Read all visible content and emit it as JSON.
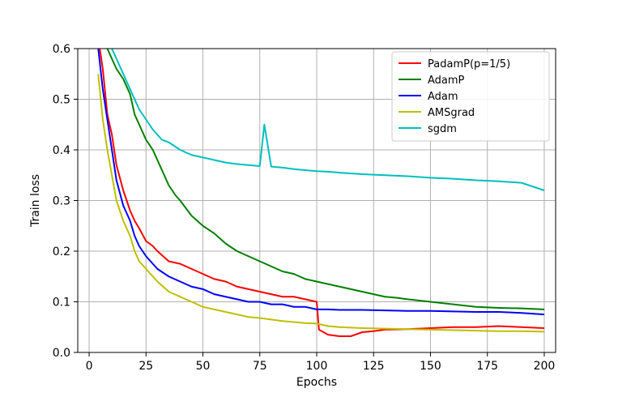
{
  "chart_data": {
    "type": "line",
    "title": "",
    "xlabel": "Epochs",
    "ylabel": "Train loss",
    "xlim": [
      -5,
      205
    ],
    "ylim": [
      0.0,
      0.6
    ],
    "xticks": [
      0,
      25,
      50,
      75,
      100,
      125,
      150,
      175,
      200
    ],
    "yticks": [
      0.0,
      0.1,
      0.2,
      0.3,
      0.4,
      0.5,
      0.6
    ],
    "xtick_labels": [
      "0",
      "25",
      "50",
      "75",
      "100",
      "125",
      "150",
      "175",
      "200"
    ],
    "ytick_labels": [
      "0.0",
      "0.1",
      "0.2",
      "0.3",
      "0.4",
      "0.5",
      "0.6"
    ],
    "grid": true,
    "legend_position": "top-right",
    "series": [
      {
        "name": "PadamP(p=1/5)",
        "color": "#ff0000",
        "x": [
          4,
          6,
          8,
          10,
          12,
          15,
          18,
          20,
          22,
          25,
          28,
          30,
          35,
          40,
          45,
          50,
          55,
          60,
          65,
          70,
          75,
          80,
          85,
          90,
          95,
          100,
          101,
          105,
          110,
          115,
          120,
          125,
          130,
          140,
          150,
          160,
          170,
          180,
          190,
          200
        ],
        "y": [
          0.62,
          0.56,
          0.47,
          0.43,
          0.37,
          0.32,
          0.28,
          0.26,
          0.245,
          0.22,
          0.21,
          0.2,
          0.18,
          0.175,
          0.165,
          0.155,
          0.145,
          0.14,
          0.13,
          0.125,
          0.12,
          0.115,
          0.11,
          0.11,
          0.105,
          0.1,
          0.045,
          0.035,
          0.032,
          0.032,
          0.04,
          0.042,
          0.045,
          0.046,
          0.048,
          0.05,
          0.05,
          0.052,
          0.05,
          0.048
        ]
      },
      {
        "name": "AdamP",
        "color": "#008000",
        "x": [
          6,
          8,
          10,
          12,
          15,
          18,
          20,
          22,
          25,
          28,
          30,
          32,
          35,
          38,
          40,
          45,
          50,
          55,
          60,
          65,
          70,
          75,
          80,
          85,
          90,
          95,
          100,
          105,
          110,
          115,
          120,
          125,
          130,
          135,
          140,
          150,
          160,
          170,
          180,
          190,
          200
        ],
        "y": [
          0.64,
          0.6,
          0.58,
          0.56,
          0.54,
          0.51,
          0.47,
          0.45,
          0.42,
          0.4,
          0.38,
          0.36,
          0.33,
          0.31,
          0.3,
          0.27,
          0.25,
          0.235,
          0.215,
          0.2,
          0.19,
          0.18,
          0.17,
          0.16,
          0.155,
          0.145,
          0.14,
          0.135,
          0.13,
          0.125,
          0.12,
          0.115,
          0.11,
          0.108,
          0.105,
          0.1,
          0.095,
          0.09,
          0.088,
          0.087,
          0.085
        ]
      },
      {
        "name": "Adam",
        "color": "#0000ff",
        "x": [
          4,
          6,
          8,
          10,
          12,
          15,
          18,
          20,
          22,
          25,
          28,
          30,
          35,
          40,
          45,
          50,
          55,
          60,
          65,
          70,
          75,
          80,
          85,
          90,
          95,
          100,
          105,
          110,
          120,
          130,
          140,
          150,
          160,
          170,
          180,
          190,
          200
        ],
        "y": [
          0.6,
          0.52,
          0.46,
          0.4,
          0.34,
          0.29,
          0.26,
          0.23,
          0.21,
          0.19,
          0.175,
          0.165,
          0.15,
          0.14,
          0.13,
          0.125,
          0.115,
          0.11,
          0.105,
          0.1,
          0.1,
          0.095,
          0.095,
          0.09,
          0.09,
          0.085,
          0.085,
          0.084,
          0.084,
          0.083,
          0.082,
          0.082,
          0.081,
          0.08,
          0.08,
          0.078,
          0.075
        ]
      },
      {
        "name": "AMSgrad",
        "color": "#bfbf00",
        "x": [
          4,
          6,
          8,
          10,
          12,
          15,
          18,
          20,
          22,
          25,
          28,
          30,
          35,
          40,
          45,
          50,
          55,
          60,
          65,
          70,
          75,
          80,
          85,
          90,
          95,
          100,
          105,
          110,
          120,
          130,
          140,
          150,
          160,
          170,
          180,
          190,
          200
        ],
        "y": [
          0.55,
          0.46,
          0.4,
          0.35,
          0.3,
          0.26,
          0.23,
          0.2,
          0.18,
          0.165,
          0.15,
          0.14,
          0.12,
          0.11,
          0.1,
          0.09,
          0.085,
          0.08,
          0.075,
          0.07,
          0.068,
          0.065,
          0.062,
          0.06,
          0.058,
          0.057,
          0.052,
          0.05,
          0.048,
          0.047,
          0.046,
          0.045,
          0.044,
          0.043,
          0.042,
          0.042,
          0.041
        ]
      },
      {
        "name": "sgdm",
        "color": "#00bfbf",
        "x": [
          8,
          10,
          12,
          15,
          18,
          20,
          22,
          25,
          28,
          30,
          32,
          35,
          40,
          45,
          50,
          55,
          60,
          65,
          70,
          75,
          77,
          80,
          85,
          90,
          95,
          100,
          105,
          110,
          120,
          130,
          140,
          150,
          160,
          170,
          180,
          190,
          200
        ],
        "y": [
          0.64,
          0.6,
          0.58,
          0.55,
          0.52,
          0.5,
          0.48,
          0.46,
          0.44,
          0.43,
          0.42,
          0.415,
          0.4,
          0.39,
          0.385,
          0.38,
          0.375,
          0.372,
          0.37,
          0.368,
          0.45,
          0.367,
          0.365,
          0.362,
          0.36,
          0.358,
          0.357,
          0.355,
          0.352,
          0.35,
          0.348,
          0.345,
          0.343,
          0.34,
          0.338,
          0.335,
          0.32
        ]
      }
    ]
  }
}
